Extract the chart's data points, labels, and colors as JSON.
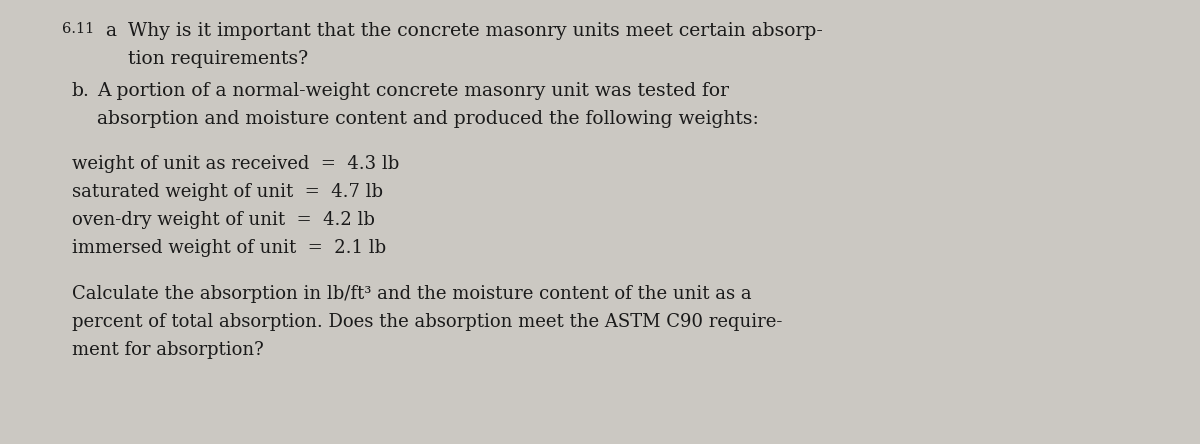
{
  "background_color": "#cbc8c2",
  "text_color": "#1a1a1a",
  "figure_width": 12.0,
  "figure_height": 4.44,
  "dpi": 100,
  "problem_number": "6.11",
  "part_a_label": "a",
  "part_b_label": "b.",
  "line1a": "Why is it important that the concrete masonry units meet certain absorp-",
  "line1b": "tion requirements?",
  "line2a": "A portion of a normal-weight concrete masonry unit was tested for",
  "line2b": "absorption and moisture content and produced the following weights:",
  "data_line1": "weight of unit as received  =  4.3 lb",
  "data_line2": "saturated weight of unit  =  4.7 lb",
  "data_line3": "oven-dry weight of unit  =  4.2 lb",
  "data_line4": "immersed weight of unit  =  2.1 lb",
  "calc_line1": "Calculate the absorption in lb/ft³ and the moisture content of the unit as a",
  "calc_line2": "percent of total absorption. Does the absorption meet the ASTM C90 require-",
  "calc_line3": "ment for absorption?"
}
